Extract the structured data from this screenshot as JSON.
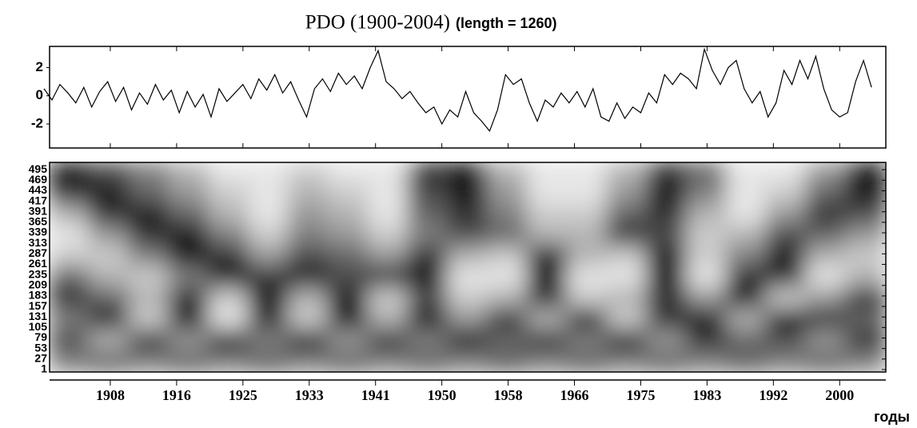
{
  "chart_data": [
    {
      "type": "line",
      "title": "PDO (1900-2004)",
      "subtitle": "(length = 1260)",
      "color": "#000000",
      "x": [
        1900,
        1901,
        1902,
        1903,
        1904,
        1905,
        1906,
        1907,
        1908,
        1909,
        1910,
        1911,
        1912,
        1913,
        1914,
        1915,
        1916,
        1917,
        1918,
        1919,
        1920,
        1921,
        1922,
        1923,
        1924,
        1925,
        1926,
        1927,
        1928,
        1929,
        1930,
        1931,
        1932,
        1933,
        1934,
        1935,
        1936,
        1937,
        1938,
        1939,
        1940,
        1941,
        1942,
        1943,
        1944,
        1945,
        1946,
        1947,
        1948,
        1949,
        1950,
        1951,
        1952,
        1953,
        1954,
        1955,
        1956,
        1957,
        1958,
        1959,
        1960,
        1961,
        1962,
        1963,
        1964,
        1965,
        1966,
        1967,
        1968,
        1969,
        1970,
        1971,
        1972,
        1973,
        1974,
        1975,
        1976,
        1977,
        1978,
        1979,
        1980,
        1981,
        1982,
        1983,
        1984,
        1985,
        1986,
        1987,
        1988,
        1989,
        1990,
        1991,
        1992,
        1993,
        1994,
        1995,
        1996,
        1997,
        1998,
        1999,
        2000,
        2001,
        2002,
        2003,
        2004
      ],
      "values": [
        0.5,
        -0.3,
        0.8,
        0.2,
        -0.5,
        0.6,
        -0.8,
        0.3,
        1.0,
        -0.4,
        0.6,
        -1.0,
        0.2,
        -0.6,
        0.8,
        -0.3,
        0.4,
        -1.2,
        0.3,
        -0.8,
        0.1,
        -1.5,
        0.5,
        -0.4,
        0.2,
        0.8,
        -0.2,
        1.2,
        0.4,
        1.5,
        0.2,
        1.0,
        -0.3,
        -1.5,
        0.5,
        1.2,
        0.3,
        1.6,
        0.8,
        1.4,
        0.5,
        2.0,
        3.2,
        1.0,
        0.5,
        -0.2,
        0.3,
        -0.5,
        -1.2,
        -0.8,
        -2.0,
        -1.0,
        -1.5,
        0.3,
        -1.2,
        -1.8,
        -2.5,
        -1.0,
        1.5,
        0.8,
        1.2,
        -0.5,
        -1.8,
        -0.3,
        -0.8,
        0.2,
        -0.5,
        0.3,
        -0.8,
        0.5,
        -1.5,
        -1.8,
        -0.5,
        -1.6,
        -0.8,
        -1.2,
        0.2,
        -0.5,
        1.5,
        0.8,
        1.6,
        1.2,
        0.5,
        3.3,
        1.8,
        0.8,
        2.0,
        2.5,
        0.5,
        -0.5,
        0.3,
        -1.5,
        -0.5,
        1.8,
        0.8,
        2.5,
        1.2,
        2.8,
        0.5,
        -1.0,
        -1.5,
        -1.2,
        1.0,
        2.5,
        0.6
      ],
      "xlim": [
        1900.7,
        2005.8
      ],
      "ylim": [
        -3.7,
        3.5
      ],
      "yticks": [
        -2,
        0,
        2
      ]
    },
    {
      "type": "heatmap",
      "xlabel": "годы",
      "colors": [
        "#ffffff",
        "#000000"
      ],
      "xlim": [
        1900.7,
        2005.8
      ],
      "ylim": [
        -5,
        513
      ],
      "xticks": [
        {
          "value": 1908.333,
          "label": "1908"
        },
        {
          "value": 1916.667,
          "label": "1916"
        },
        1925,
        {
          "value": 1933.333,
          "label": "1933"
        },
        {
          "value": 1941.667,
          "label": "1941"
        },
        1950,
        {
          "value": 1958.333,
          "label": "1958"
        },
        {
          "value": 1966.667,
          "label": "1966"
        },
        1975,
        {
          "value": 1983.333,
          "label": "1983"
        },
        {
          "value": 1991.667,
          "label": "1992"
        },
        2000
      ],
      "yticks": [
        1,
        27,
        53,
        79,
        105,
        131,
        157,
        183,
        209,
        235,
        261,
        287,
        313,
        339,
        365,
        391,
        417,
        443,
        469,
        495
      ],
      "z": [
        [
          0.9,
          0.7,
          0.5,
          0.3,
          0.1,
          0.1,
          0.2,
          0.1,
          0.1,
          0.8,
          0.9,
          0.3,
          0.1,
          0.1,
          0.3,
          0.8,
          0.6,
          0.1,
          0.1,
          0.4,
          0.9
        ],
        [
          0.8,
          0.9,
          0.6,
          0.4,
          0.2,
          0.1,
          0.3,
          0.2,
          0.1,
          0.7,
          0.9,
          0.4,
          0.1,
          0.1,
          0.4,
          0.9,
          0.5,
          0.1,
          0.2,
          0.6,
          0.9
        ],
        [
          0.3,
          0.8,
          0.9,
          0.6,
          0.3,
          0.1,
          0.4,
          0.3,
          0.1,
          0.6,
          0.8,
          0.5,
          0.2,
          0.2,
          0.6,
          0.8,
          0.3,
          0.1,
          0.4,
          0.8,
          0.7
        ],
        [
          0.1,
          0.4,
          0.8,
          0.9,
          0.5,
          0.2,
          0.5,
          0.4,
          0.2,
          0.5,
          0.7,
          0.6,
          0.3,
          0.3,
          0.8,
          0.7,
          0.2,
          0.3,
          0.7,
          0.6,
          0.4
        ],
        [
          0.2,
          0.2,
          0.5,
          0.9,
          0.8,
          0.4,
          0.7,
          0.6,
          0.4,
          0.8,
          0.3,
          0.2,
          0.9,
          0.3,
          0.2,
          0.9,
          0.2,
          0.5,
          0.9,
          0.3,
          0.2
        ],
        [
          0.6,
          0.3,
          0.2,
          0.5,
          0.9,
          0.8,
          0.9,
          0.7,
          0.8,
          0.9,
          0.1,
          0.1,
          0.9,
          0.1,
          0.1,
          0.9,
          0.1,
          0.8,
          0.8,
          0.1,
          0.3
        ],
        [
          0.8,
          0.6,
          0.3,
          0.8,
          0.2,
          0.9,
          0.3,
          0.9,
          0.2,
          0.7,
          0.2,
          0.3,
          0.8,
          0.2,
          0.3,
          0.8,
          0.4,
          0.9,
          0.2,
          0.4,
          0.8
        ],
        [
          0.5,
          0.9,
          0.2,
          0.9,
          0.1,
          0.8,
          0.2,
          0.9,
          0.3,
          0.9,
          0.4,
          0.8,
          0.3,
          0.9,
          0.2,
          0.8,
          0.9,
          0.3,
          0.9,
          0.8,
          0.6
        ],
        [
          0.7,
          0.3,
          0.8,
          0.4,
          0.9,
          0.5,
          0.9,
          0.4,
          0.8,
          0.5,
          0.9,
          0.6,
          0.8,
          0.5,
          0.9,
          0.4,
          0.8,
          0.6,
          0.7,
          0.4,
          0.8
        ],
        [
          0.5,
          0.6,
          0.5,
          0.6,
          0.5,
          0.6,
          0.5,
          0.6,
          0.5,
          0.6,
          0.5,
          0.6,
          0.5,
          0.6,
          0.5,
          0.6,
          0.5,
          0.6,
          0.5,
          0.6,
          0.5
        ]
      ]
    }
  ]
}
